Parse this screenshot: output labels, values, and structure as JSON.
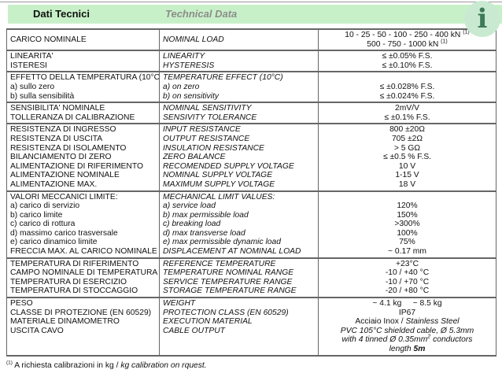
{
  "header": {
    "title_it": "Dati Tecnici",
    "title_en": "Technical Data",
    "info_icon_glyph": "i"
  },
  "colors": {
    "band_background": "#c8f0c8",
    "title_en_gray": "#8c8c8c",
    "icon_background": "#c9ead0",
    "icon_glyph_green": "#3c7a58",
    "table_border": "#666666"
  },
  "table": {
    "groups": [
      {
        "valign": "middle",
        "it": [
          "CARICO NOMINALE"
        ],
        "en": [
          "NOMINAL LOAD"
        ],
        "values": [
          [
            {
              "text": "10 - 25 - 50 - 100 - 250 - 400 kN "
            },
            {
              "sup": "(1)"
            }
          ],
          [
            {
              "text": "500 - 750 - 1000 kN "
            },
            {
              "sup": "(1)"
            }
          ]
        ]
      },
      {
        "it": [
          "LINEARITA'",
          "ISTERESI"
        ],
        "en": [
          "LINEARITY",
          "HYSTERESIS"
        ],
        "values": [
          "≤ ±0.05% F.S.",
          "≤ ±0.10% F.S."
        ]
      },
      {
        "it": [
          "EFFETTO DELLA TEMPERATURA (10°C)",
          "a) sullo zero",
          "b) sulla sensibilità"
        ],
        "en": [
          "TEMPERATURE EFFECT (10°C)",
          "a) on zero",
          "b) on sensitivity"
        ],
        "values": [
          "",
          "≤ ±0.028% F.S.",
          "≤ ±0.024% F.S."
        ]
      },
      {
        "it": [
          "SENSIBILITA' NOMINALE",
          "TOLLERANZA DI CALIBRAZIONE"
        ],
        "en": [
          "NOMINAL SENSITIVITY",
          "SENSIVITY TOLERANCE"
        ],
        "values": [
          "2mV/V",
          "≤ ±0.1% F.S."
        ]
      },
      {
        "it": [
          "RESISTENZA DI INGRESSO",
          "RESISTENZA DI USCITA",
          "RESISTENZA DI ISOLAMENTO",
          "BILANCIAMENTO DI ZERO",
          "ALIMENTAZIONE DI RIFERIMENTO",
          "ALIMENTAZIONE NOMINALE",
          "ALIMENTAZIONE MAX."
        ],
        "en": [
          "INPUT RESISTANCE",
          "OUTPUT RESISTANCE",
          "INSULATION RESISTANCE",
          "ZERO BALANCE",
          "RECOMENDED SUPPLY VOLTAGE",
          "NOMINAL SUPPLY VOLTAGE",
          "MAXIMUM SUPPLY VOLTAGE"
        ],
        "values": [
          "800 ±20Ω",
          "705 ±2Ω",
          "> 5 GΩ",
          "≤ ±0.5 % F.S.",
          "10 V",
          "1-15 V",
          "18 V"
        ]
      },
      {
        "it": [
          "VALORI MECCANICI LIMITE:",
          "a) carico di servizio",
          "b) carico limite",
          "c) carico di rottura",
          "d) massimo carico trasversale",
          "e) carico dinamico  limite",
          "FRECCIA MAX. AL CARICO NOMINALE"
        ],
        "en": [
          "MECHANICAL LIMIT VALUES:",
          "a) service load",
          "b) max permissible load",
          "c) breaking load",
          "d) max transverse load",
          "e) max permissible dynamic load",
          "DISPLACEMENT AT NOMINAL LOAD"
        ],
        "values": [
          "",
          "120%",
          "150%",
          ">300%",
          "100%",
          "75%",
          "~ 0.17 mm"
        ]
      },
      {
        "it": [
          "TEMPERATURA DI RIFERIMENTO",
          "CAMPO NOMINALE DI TEMPERATURA",
          "TEMPERATURA DI ESERCIZIO",
          "TEMPERATURA DI STOCCAGGIO"
        ],
        "en": [
          "REFERENCE TEMPERATURE",
          "TEMPERATURE NOMINAL RANGE",
          "SERVICE TEMPERATURE RANGE",
          "STORAGE TEMPERATURE RANGE"
        ],
        "values": [
          "+23°C",
          "-10 / +40 °C",
          "-10 / +70 °C",
          "-20 / +80 °C"
        ]
      },
      {
        "it": [
          "PESO",
          "CLASSE DI PROTEZIONE (EN 60529)",
          "MATERIALE DINAMOMETRO",
          "USCITA CAVO"
        ],
        "en": [
          "WEIGHT",
          "PROTECTION CLASS (EN 60529)",
          "EXECUTION MATERIAL",
          "CABLE OUTPUT"
        ],
        "values": [
          "~ 4.1 kg     ~ 8.5 kg",
          "IP67",
          [
            {
              "text": "Acciaio Inox / "
            },
            {
              "text": "Stainless Steel",
              "italic": true
            }
          ],
          [
            {
              "text": "PVC 105°C shielded cable, Ø 5.3mm",
              "italic": true
            }
          ],
          [
            {
              "text": "with 4 tinned Ø 0.35mm",
              "italic": true
            },
            {
              "sup": "2",
              "italic": true
            },
            {
              "text": " conductors",
              "italic": true
            }
          ],
          [
            {
              "text": "length ",
              "italic": true
            },
            {
              "text": "5m",
              "italic": true,
              "bold": true
            }
          ]
        ]
      }
    ]
  },
  "footnote": {
    "segments": [
      {
        "sup": "(1)"
      },
      {
        "text": " A richiesta calibrazioni in kg / "
      },
      {
        "text": "kg calibration on rquest.",
        "italic": true
      }
    ]
  }
}
